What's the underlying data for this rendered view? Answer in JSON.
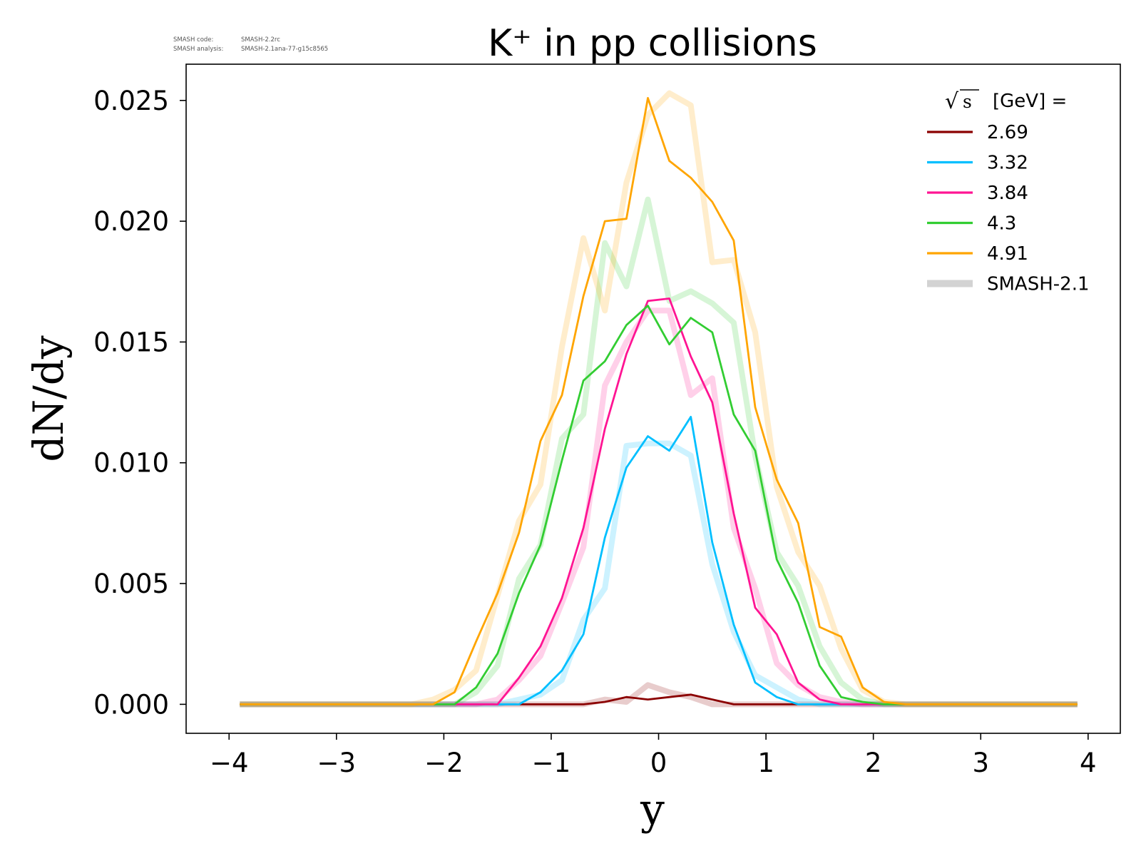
{
  "meta": {
    "code_label": "SMASH code:",
    "code_value": "SMASH-2.2rc",
    "analysis_label": "SMASH analysis:",
    "analysis_value": "SMASH-2.1ana-77-g15c8565"
  },
  "chart_data": {
    "type": "line",
    "title": "K⁺ in pp collisions",
    "xlabel": "y",
    "ylabel": "dN/dy",
    "xlim": [
      -4.4,
      4.3
    ],
    "ylim": [
      -0.0012,
      0.0265
    ],
    "xticks": [
      -4,
      -3,
      -2,
      -1,
      0,
      1,
      2,
      3,
      4
    ],
    "xtick_labels": [
      "−4",
      "−3",
      "−2",
      "−1",
      "0",
      "1",
      "2",
      "3",
      "4"
    ],
    "yticks": [
      0.0,
      0.005,
      0.01,
      0.015,
      0.02,
      0.025
    ],
    "ytick_labels": [
      "0.000",
      "0.005",
      "0.010",
      "0.015",
      "0.020",
      "0.025"
    ],
    "grid": false,
    "legend": {
      "placement": "top-right",
      "title_prefix": "√s",
      "title_suffix": "[GeV] ="
    },
    "x": [
      -3.9,
      -3.7,
      -3.5,
      -3.3,
      -3.1,
      -2.9,
      -2.7,
      -2.5,
      -2.3,
      -2.1,
      -1.9,
      -1.7,
      -1.5,
      -1.3,
      -1.1,
      -0.9,
      -0.7,
      -0.5,
      -0.3,
      -0.1,
      0.1,
      0.3,
      0.5,
      0.7,
      0.9,
      1.1,
      1.3,
      1.5,
      1.7,
      1.9,
      2.1,
      2.3,
      2.5,
      2.7,
      2.9,
      3.1,
      3.3,
      3.5,
      3.7,
      3.9
    ],
    "series": [
      {
        "name": "2.69",
        "color": "#8b0000",
        "values": [
          0,
          0,
          0,
          0,
          0,
          0,
          0,
          0,
          0,
          0,
          0,
          0,
          0,
          0,
          0,
          0,
          0,
          0.0001,
          0.0003,
          0.0002,
          0.0003,
          0.0004,
          0.0002,
          0,
          0,
          0,
          0,
          0,
          0,
          0,
          0,
          0,
          0,
          0,
          0,
          0,
          0,
          0,
          0,
          0
        ],
        "reference": [
          0,
          0,
          0,
          0,
          0,
          0,
          0,
          0,
          0,
          0,
          0,
          0,
          0,
          0,
          0,
          0,
          0,
          0.0002,
          0.0001,
          0.0008,
          0.0005,
          0.0003,
          0,
          0,
          0,
          0,
          0,
          0,
          0,
          0,
          0,
          0,
          0,
          0,
          0,
          0,
          0,
          0,
          0,
          0
        ]
      },
      {
        "name": "3.32",
        "color": "#00bfff",
        "values": [
          0,
          0,
          0,
          0,
          0,
          0,
          0,
          0,
          0,
          0,
          0,
          0,
          0,
          0,
          0.0005,
          0.0014,
          0.0029,
          0.0069,
          0.0098,
          0.0111,
          0.0105,
          0.0119,
          0.0067,
          0.0033,
          0.0009,
          0.0003,
          0,
          0,
          0,
          0,
          0,
          0,
          0,
          0,
          0,
          0,
          0,
          0,
          0,
          0
        ],
        "reference": [
          0,
          0,
          0,
          0,
          0,
          0,
          0,
          0,
          0,
          0,
          0,
          0,
          0,
          0.0002,
          0.0004,
          0.001,
          0.0035,
          0.0048,
          0.0107,
          0.0108,
          0.0108,
          0.0103,
          0.0058,
          0.003,
          0.0012,
          0.0007,
          0.0002,
          0,
          0,
          0,
          0,
          0,
          0,
          0,
          0,
          0,
          0,
          0,
          0,
          0
        ]
      },
      {
        "name": "3.84",
        "color": "#ff1493",
        "values": [
          0,
          0,
          0,
          0,
          0,
          0,
          0,
          0,
          0,
          0,
          0,
          0,
          0,
          0.0011,
          0.0024,
          0.0044,
          0.0073,
          0.0114,
          0.0145,
          0.0167,
          0.0168,
          0.0144,
          0.0125,
          0.0079,
          0.004,
          0.0029,
          0.0009,
          0.0002,
          0,
          0,
          0,
          0,
          0,
          0,
          0,
          0,
          0,
          0,
          0,
          0
        ],
        "reference": [
          0,
          0,
          0,
          0,
          0,
          0,
          0,
          0,
          0,
          0,
          0,
          0,
          0.0002,
          0.001,
          0.002,
          0.0042,
          0.0065,
          0.0132,
          0.015,
          0.0163,
          0.0163,
          0.0128,
          0.0135,
          0.0073,
          0.0048,
          0.0017,
          0.0008,
          0.0003,
          0.0001,
          0,
          0,
          0,
          0,
          0,
          0,
          0,
          0,
          0,
          0,
          0
        ]
      },
      {
        "name": "4.3",
        "color": "#32cd32",
        "values": [
          0,
          0,
          0,
          0,
          0,
          0,
          0,
          0,
          0,
          0,
          0,
          0.0007,
          0.0021,
          0.0046,
          0.0066,
          0.0101,
          0.0134,
          0.0142,
          0.0157,
          0.0165,
          0.0149,
          0.016,
          0.0154,
          0.012,
          0.0105,
          0.006,
          0.0042,
          0.0016,
          0.0003,
          0.0001,
          0,
          0,
          0,
          0,
          0,
          0,
          0,
          0,
          0,
          0
        ],
        "reference": [
          0,
          0,
          0,
          0,
          0,
          0,
          0,
          0,
          0,
          0,
          0,
          0.0005,
          0.0016,
          0.0052,
          0.0066,
          0.011,
          0.012,
          0.0191,
          0.0173,
          0.0209,
          0.0167,
          0.0171,
          0.0166,
          0.0158,
          0.0103,
          0.0063,
          0.0049,
          0.0024,
          0.0009,
          0.0002,
          0,
          0,
          0,
          0,
          0,
          0,
          0,
          0,
          0,
          0
        ]
      },
      {
        "name": "4.91",
        "color": "#ffa500",
        "values": [
          0,
          0,
          0,
          0,
          0,
          0,
          0,
          0,
          0,
          0,
          0.0005,
          0.0026,
          0.0046,
          0.0071,
          0.0109,
          0.0128,
          0.0169,
          0.02,
          0.0201,
          0.0251,
          0.0225,
          0.0218,
          0.0208,
          0.0192,
          0.0123,
          0.0093,
          0.0075,
          0.0032,
          0.0028,
          0.0007,
          0.0001,
          0,
          0,
          0,
          0,
          0,
          0,
          0,
          0,
          0
        ],
        "reference": [
          0,
          0,
          0,
          0,
          0,
          0,
          0,
          0,
          0,
          0.0002,
          0.0006,
          0.0014,
          0.0045,
          0.0076,
          0.0091,
          0.0148,
          0.0193,
          0.0163,
          0.0216,
          0.0244,
          0.0253,
          0.0248,
          0.0183,
          0.0184,
          0.0154,
          0.009,
          0.0063,
          0.0049,
          0.0023,
          0.0006,
          0.0001,
          0,
          0,
          0,
          0,
          0,
          0,
          0,
          0,
          0
        ]
      }
    ],
    "reference_series": {
      "name": "SMASH-2.1",
      "color": "#d3d3d3"
    }
  }
}
